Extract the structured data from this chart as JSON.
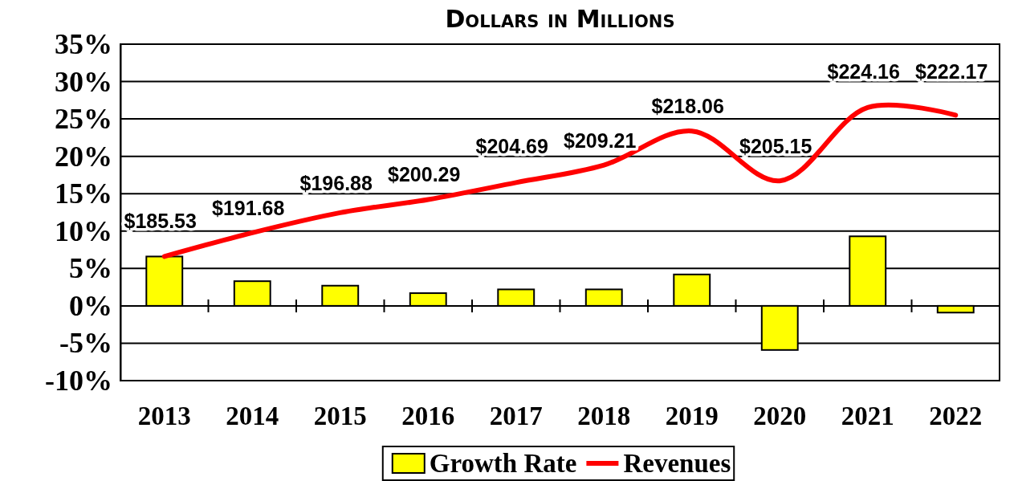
{
  "chart_data": {
    "type": "bar",
    "title": "Dollars in Millions",
    "categories": [
      "2013",
      "2014",
      "2015",
      "2016",
      "2017",
      "2018",
      "2019",
      "2020",
      "2021",
      "2022"
    ],
    "series": [
      {
        "name": "Growth Rate",
        "color": "#ffff00",
        "values": [
          6.6,
          3.3,
          2.7,
          1.7,
          2.2,
          2.2,
          4.2,
          -5.9,
          9.3,
          -0.9
        ]
      },
      {
        "name": "Revenues",
        "type": "line",
        "axis": "y2",
        "color": "#ff0000",
        "values": [
          185.53,
          191.68,
          196.88,
          200.29,
          204.69,
          209.21,
          218.06,
          205.15,
          224.16,
          222.17
        ],
        "value_labels": [
          "$185.53",
          "$191.68",
          "$196.88",
          "$200.29",
          "$204.69",
          "$209.21",
          "$218.06",
          "$205.15",
          "$224.16",
          "$222.17"
        ]
      }
    ],
    "ylim": [
      -10,
      35
    ],
    "yticks": [
      {
        "value": -10,
        "label": "-10%"
      },
      {
        "value": -5,
        "label": "-5%"
      },
      {
        "value": 0,
        "label": "0%"
      },
      {
        "value": 5,
        "label": "5%"
      },
      {
        "value": 10,
        "label": "10%"
      },
      {
        "value": 15,
        "label": "15%"
      },
      {
        "value": 20,
        "label": "20%"
      },
      {
        "value": 25,
        "label": "25%"
      },
      {
        "value": 30,
        "label": "30%"
      },
      {
        "value": 35,
        "label": "35%"
      }
    ],
    "y2lim": [
      153.3,
      240.6
    ],
    "grid": "y",
    "legend": "bottom",
    "marker": "none",
    "line_style": "solid"
  }
}
